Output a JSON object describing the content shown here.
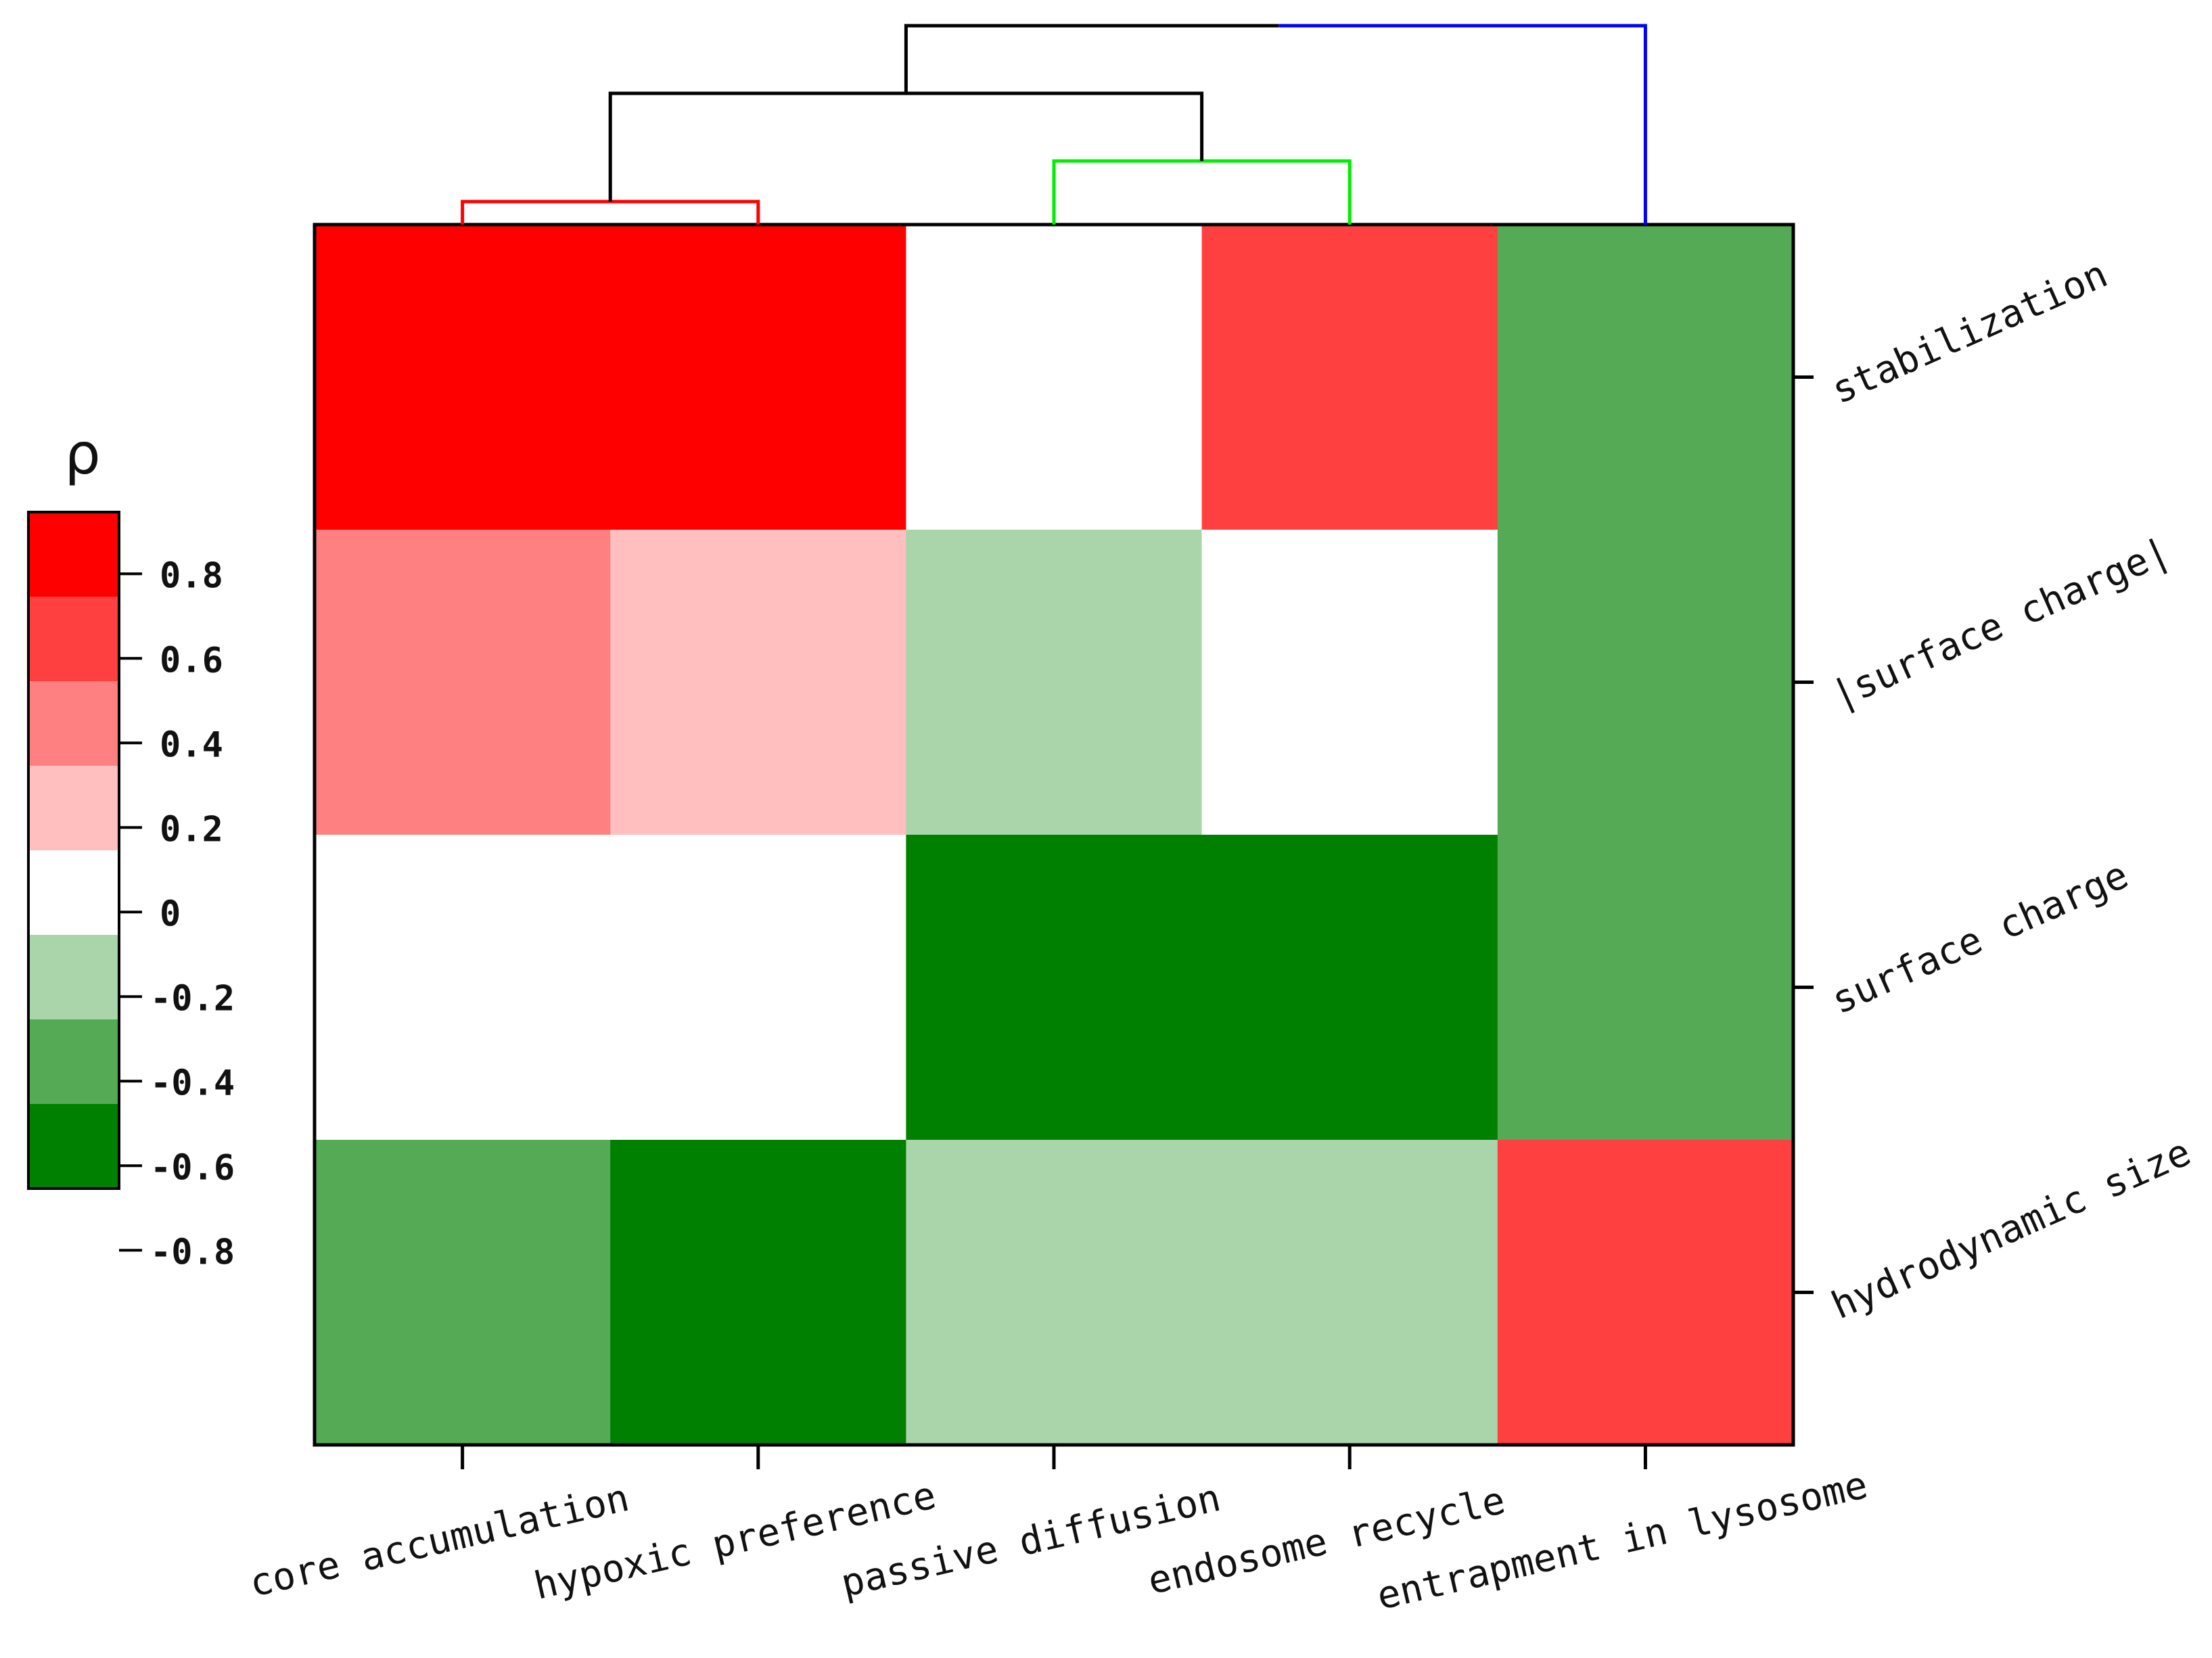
{
  "chart_data": {
    "type": "heatmap",
    "title": "",
    "legend_title": "ρ",
    "x_categories": [
      "core accumulation",
      "hypoxic preference",
      "passive diffusion",
      "endosome recycle",
      "entrapment in lysosome"
    ],
    "y_categories": [
      "stabilization",
      "|surface charge|",
      "surface charge",
      "hydrodynamic size"
    ],
    "values": [
      [
        0.9,
        0.9,
        0.0,
        0.7,
        -0.5
      ],
      [
        0.4,
        0.2,
        -0.3,
        0.0,
        -0.5
      ],
      [
        0.0,
        0.0,
        -0.9,
        -0.9,
        -0.5
      ],
      [
        -0.5,
        -0.9,
        -0.3,
        -0.3,
        0.7
      ]
    ],
    "color_scale": {
      "bins": [
        {
          "from": 0.8,
          "to": 1.0,
          "color": "#ff0000"
        },
        {
          "from": 0.6,
          "to": 0.8,
          "color": "#ff4040"
        },
        {
          "from": 0.3,
          "to": 0.6,
          "color": "#ff8080"
        },
        {
          "from": 0.1,
          "to": 0.3,
          "color": "#ffbfbf"
        },
        {
          "from": -0.1,
          "to": 0.1,
          "color": "#ffffff"
        },
        {
          "from": -0.4,
          "to": -0.1,
          "color": "#aad4aa"
        },
        {
          "from": -0.7,
          "to": -0.4,
          "color": "#55aa55"
        },
        {
          "from": -1.0,
          "to": -0.7,
          "color": "#008000"
        }
      ],
      "tick_labels": [
        "0.8",
        "0.6",
        "0.4",
        "0.2",
        "0",
        "-0.2",
        "-0.4",
        "-0.6",
        "-0.8"
      ]
    },
    "column_dendrogram": {
      "clusters": [
        {
          "members": [
            "core accumulation",
            "hypoxic preference"
          ],
          "color": "#ff0000"
        },
        {
          "members": [
            "passive diffusion",
            "endosome recycle"
          ],
          "color": "#00ee00"
        },
        {
          "members": [
            "core accumulation",
            "hypoxic preference",
            "passive diffusion",
            "endosome recycle"
          ],
          "color": "#000000"
        },
        {
          "members": [
            "core accumulation",
            "hypoxic preference",
            "passive diffusion",
            "endosome recycle",
            "entrapment in lysosome"
          ],
          "color": "#000000",
          "right_color": "#0000ff"
        }
      ]
    },
    "grid": false,
    "legend_position": "left"
  }
}
